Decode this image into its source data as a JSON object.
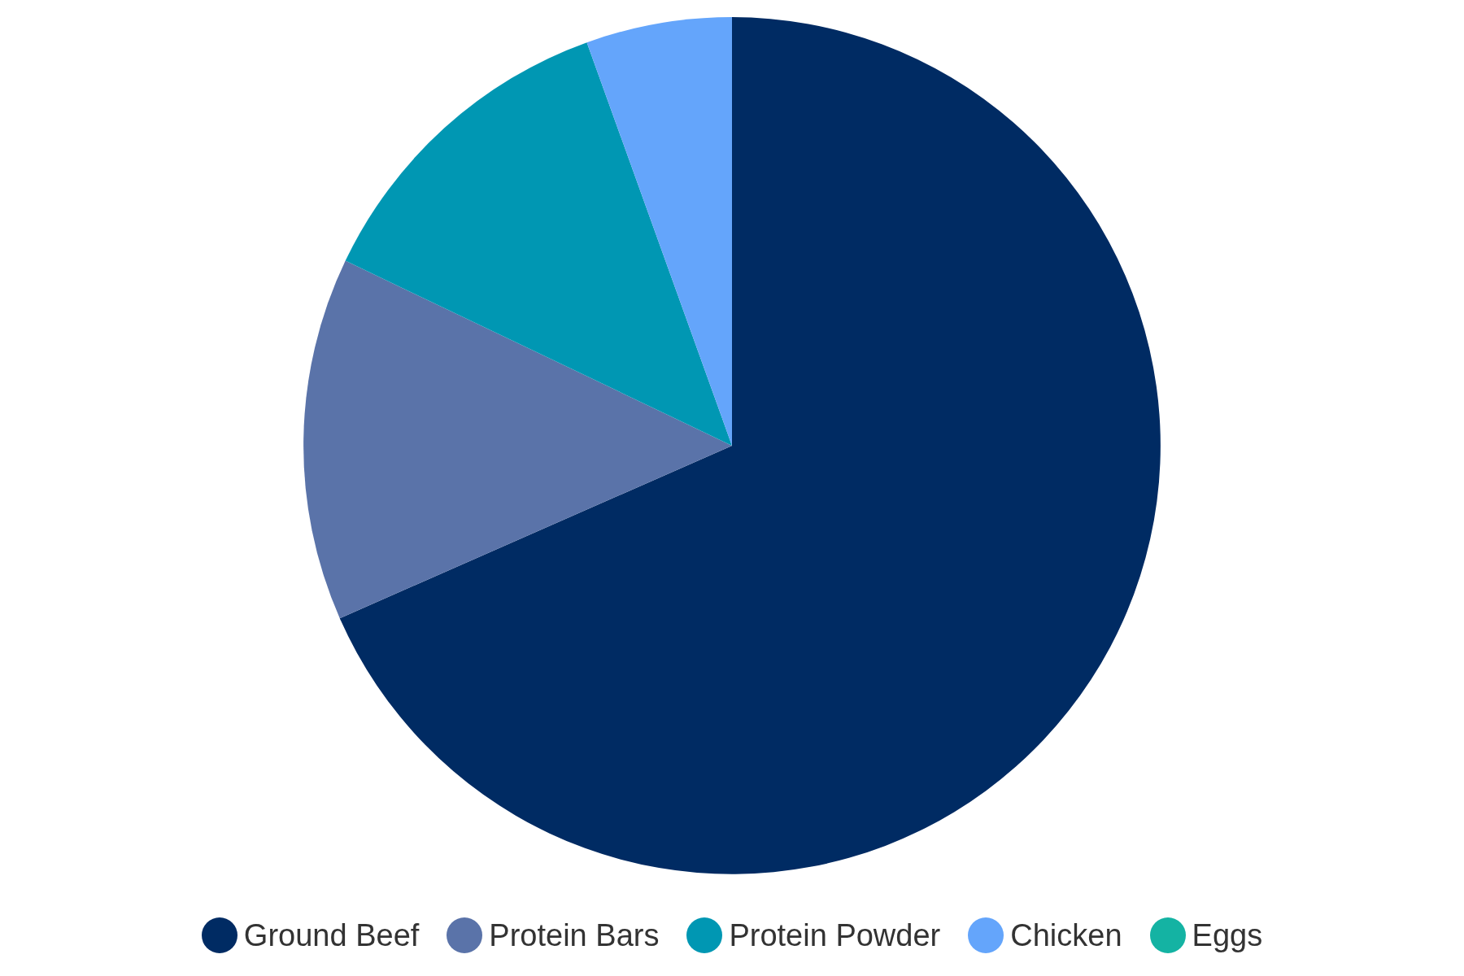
{
  "chart_data": {
    "type": "pie",
    "categories": [
      "Ground Beef",
      "Protein Bars",
      "Protein Powder",
      "Chicken",
      "Eggs"
    ],
    "values": [
      68.4,
      13.7,
      12.4,
      5.5,
      0
    ],
    "colors": [
      "#002b63",
      "#5a73a9",
      "#0097b3",
      "#64a5fb",
      "#14b3a3"
    ],
    "legend": "bottom"
  }
}
